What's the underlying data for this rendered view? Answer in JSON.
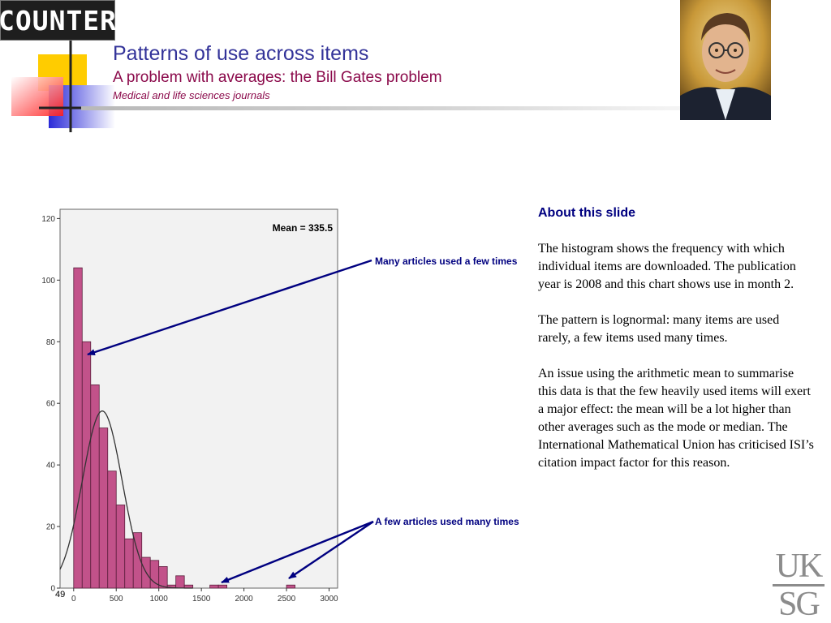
{
  "header": {
    "logo_text": "COUNTER",
    "title": "Patterns of use across items",
    "subtitle": "A problem with averages: the Bill Gates problem",
    "subsubtitle": "Medical and life sciences journals"
  },
  "callouts": {
    "many_articles_few_times": "Many articles used a few times",
    "few_articles_many_times": "A few articles used many times"
  },
  "notes": {
    "heading": "About this slide",
    "paragraphs": [
      "The histogram shows the frequency with which individual items are downloaded.  The publication year is 2008 and this chart shows use in month 2.",
      "The pattern is lognormal: many items are used rarely, a few items used many times.",
      "An issue using the arithmetic mean to summarise this data is that the few heavily used items will exert a major effect: the mean will be a lot higher than other averages such as the mode or median. The International Mathematical Union has criticised ISI’s citation impact factor for this reason."
    ]
  },
  "footer": {
    "page_number": "49",
    "brand_top": "UK",
    "brand_bottom": "SG"
  },
  "colors": {
    "bar_fill": "#c2528a",
    "bar_stroke": "#5a1e3c",
    "plot_bg": "#f2f2f2",
    "arrow": "#000080",
    "title": "#333399",
    "subtitle": "#8b0a4b"
  },
  "chart_data": {
    "type": "bar",
    "subtype": "histogram",
    "annotation": "Mean = 335.5",
    "bin_width": 100,
    "bin_starts": [
      0,
      100,
      200,
      300,
      400,
      500,
      600,
      700,
      800,
      900,
      1000,
      1100,
      1200,
      1300,
      1400,
      1500,
      1600,
      1700,
      1800,
      1900,
      2000,
      2100,
      2200,
      2300,
      2400,
      2500
    ],
    "values": [
      104,
      80,
      66,
      52,
      38,
      27,
      16,
      18,
      10,
      9,
      7,
      1,
      4,
      1,
      0,
      0,
      1,
      1,
      0,
      0,
      0,
      0,
      0,
      0,
      0,
      1
    ],
    "xlim": [
      -160,
      3100
    ],
    "ylim": [
      0,
      123
    ],
    "xticks": [
      0,
      500,
      1000,
      1500,
      2000,
      2500,
      3000
    ],
    "yticks": [
      0,
      20,
      40,
      60,
      80,
      100,
      120
    ],
    "normal_curve": {
      "mean": 335.5,
      "sd": 234,
      "peak": 57.5
    },
    "grid": false,
    "legend": "none"
  }
}
